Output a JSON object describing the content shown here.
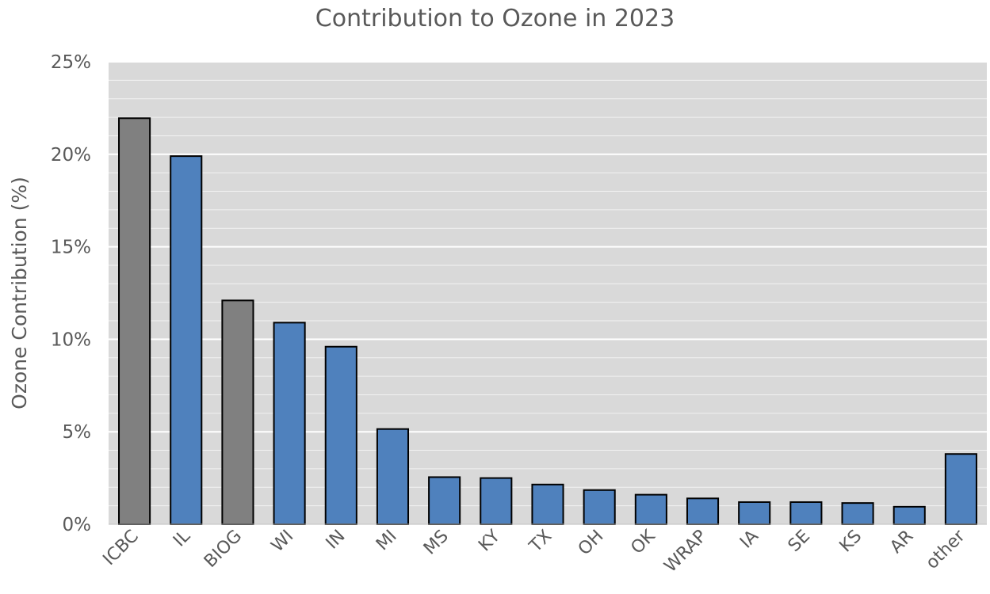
{
  "chart_data": {
    "type": "bar",
    "title": "Contribution to Ozone in 2023",
    "xlabel": "",
    "ylabel": "Ozone Contribution (%)",
    "ylim": [
      0,
      25
    ],
    "yticks": [
      0,
      5,
      10,
      15,
      20,
      25
    ],
    "ytick_labels": [
      "0%",
      "5%",
      "10%",
      "15%",
      "20%",
      "25%"
    ],
    "grid": true,
    "legend": "none",
    "categories": [
      "ICBC",
      "IL",
      "BIOG",
      "WI",
      "IN",
      "MI",
      "MS",
      "KY",
      "TX",
      "OH",
      "OK",
      "WRAP",
      "IA",
      "SE",
      "KS",
      "AR",
      "other"
    ],
    "values": [
      21.95,
      19.9,
      12.1,
      10.9,
      9.6,
      5.15,
      2.55,
      2.5,
      2.15,
      1.85,
      1.6,
      1.4,
      1.2,
      1.2,
      1.15,
      0.95,
      3.8
    ],
    "bar_colors": [
      "#808080",
      "#4f81bd",
      "#808080",
      "#4f81bd",
      "#4f81bd",
      "#4f81bd",
      "#4f81bd",
      "#4f81bd",
      "#4f81bd",
      "#4f81bd",
      "#4f81bd",
      "#4f81bd",
      "#4f81bd",
      "#4f81bd",
      "#4f81bd",
      "#4f81bd",
      "#4f81bd"
    ]
  },
  "colors": {
    "plot_background": "#d9d9d9",
    "major_grid": "#ffffff",
    "minor_grid": "#f2f2f2",
    "text": "#595959",
    "bar_outline": "#000000"
  }
}
